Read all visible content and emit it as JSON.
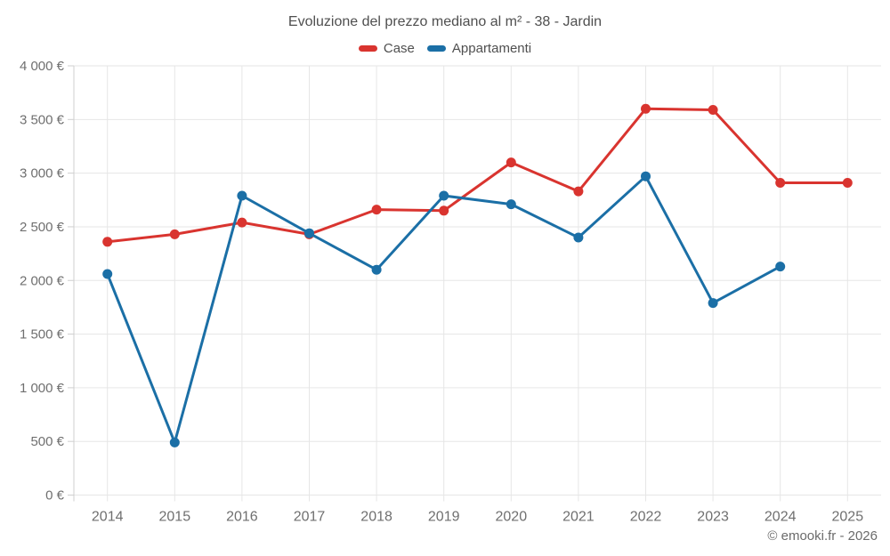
{
  "title": "Evoluzione del prezzo mediano al m² - 38 - Jardin",
  "legend": [
    {
      "label": "Case",
      "color": "#d9342f"
    },
    {
      "label": "Appartamenti",
      "color": "#1b6fa6"
    }
  ],
  "footer": {
    "copyright": "© emooki.fr - 2026"
  },
  "chart_data": {
    "type": "line",
    "title": "Evoluzione del prezzo mediano al m² - 38 - Jardin",
    "categories": [
      "2014",
      "2015",
      "2016",
      "2017",
      "2018",
      "2019",
      "2020",
      "2021",
      "2022",
      "2023",
      "2024",
      "2025"
    ],
    "series": [
      {
        "name": "Case",
        "color": "#d9342f",
        "values": [
          2360,
          2430,
          2540,
          2430,
          2660,
          2650,
          3100,
          2830,
          3600,
          3590,
          2910,
          2910
        ]
      },
      {
        "name": "Appartamenti",
        "color": "#1b6fa6",
        "values": [
          2060,
          490,
          2790,
          2440,
          2100,
          2790,
          2710,
          2400,
          2970,
          1790,
          2130,
          null
        ]
      }
    ],
    "xlabel": "",
    "ylabel": "",
    "ylim": [
      0,
      4000
    ],
    "y_tick_step": 500,
    "y_tick_labels": [
      "0 €",
      "500 €",
      "1 000 €",
      "1 500 €",
      "2 000 €",
      "2 500 €",
      "3 000 €",
      "3 500 €",
      "4 000 €"
    ],
    "grid": true,
    "legend_position": "top",
    "currency": "€"
  }
}
